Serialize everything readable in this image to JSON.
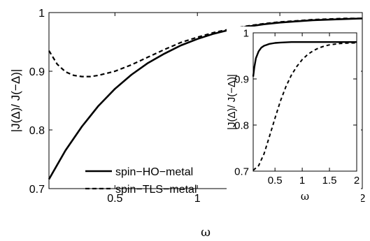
{
  "chart_data": [
    {
      "type": "line",
      "xlabel": "ω",
      "ylabel": "|J(Δ)/ J(−Δ)|",
      "xlim": [
        0.1,
        2
      ],
      "ylim": [
        0.7,
        1
      ],
      "xticks": [
        0.5,
        1,
        1.5,
        2
      ],
      "xtick_labels": [
        "0.5",
        "1",
        "1.5",
        "2"
      ],
      "yticks": [
        0.7,
        0.8,
        0.9,
        1
      ],
      "ytick_labels": [
        "0.7",
        "0.8",
        "0.9",
        "1"
      ],
      "grid": false,
      "legend": "bottom-left",
      "series": [
        {
          "name": "spin−HO−metal",
          "style": "solid",
          "x": [
            0.1,
            0.2,
            0.3,
            0.4,
            0.5,
            0.6,
            0.7,
            0.8,
            0.9,
            1.0,
            1.1,
            1.2,
            1.3,
            1.4,
            1.5,
            1.6,
            1.7,
            1.8,
            1.9,
            2.0
          ],
          "y": [
            0.716,
            0.765,
            0.806,
            0.841,
            0.87,
            0.894,
            0.914,
            0.93,
            0.944,
            0.955,
            0.964,
            0.971,
            0.976,
            0.98,
            0.983,
            0.985,
            0.987,
            0.988,
            0.989,
            0.99
          ]
        },
        {
          "name": "spin−TLS−metal",
          "style": "dashed",
          "x": [
            0.1,
            0.15,
            0.2,
            0.25,
            0.3,
            0.35,
            0.4,
            0.5,
            0.6,
            0.7,
            0.8,
            0.9,
            1.0,
            1.1,
            1.2,
            1.3,
            1.4,
            1.5,
            1.6,
            1.7,
            1.8,
            1.9,
            2.0
          ],
          "y": [
            0.935,
            0.912,
            0.899,
            0.893,
            0.891,
            0.891,
            0.893,
            0.9,
            0.911,
            0.924,
            0.937,
            0.949,
            0.958,
            0.966,
            0.972,
            0.977,
            0.981,
            0.984,
            0.986,
            0.988,
            0.989,
            0.99,
            0.99
          ]
        }
      ]
    },
    {
      "type": "line",
      "inset": true,
      "xlabel": "ω",
      "ylabel": "|J(Δ)/ J(−Δ)|",
      "xlim": [
        0.1,
        2
      ],
      "ylim": [
        0.7,
        1
      ],
      "xticks": [
        0.5,
        1,
        1.5,
        2
      ],
      "xtick_labels": [
        "0.5",
        "1",
        "1.5",
        "2"
      ],
      "yticks": [
        0.7,
        0.8,
        0.9,
        1
      ],
      "ytick_labels": [
        "0.7",
        "0.8",
        "0.9",
        "1"
      ],
      "grid": false,
      "series": [
        {
          "style": "solid",
          "x": [
            0.1,
            0.12,
            0.15,
            0.2,
            0.25,
            0.3,
            0.4,
            0.5,
            0.6,
            0.8,
            1.0,
            1.5,
            2.0
          ],
          "y": [
            0.905,
            0.925,
            0.945,
            0.96,
            0.968,
            0.972,
            0.976,
            0.978,
            0.979,
            0.98,
            0.98,
            0.98,
            0.98
          ]
        },
        {
          "style": "dashed",
          "x": [
            0.1,
            0.2,
            0.3,
            0.4,
            0.5,
            0.6,
            0.7,
            0.8,
            0.9,
            1.0,
            1.1,
            1.2,
            1.3,
            1.4,
            1.5,
            1.7,
            1.9,
            2.0
          ],
          "y": [
            0.702,
            0.712,
            0.738,
            0.776,
            0.815,
            0.852,
            0.883,
            0.908,
            0.927,
            0.942,
            0.953,
            0.961,
            0.967,
            0.971,
            0.974,
            0.977,
            0.978,
            0.978
          ]
        }
      ]
    }
  ]
}
